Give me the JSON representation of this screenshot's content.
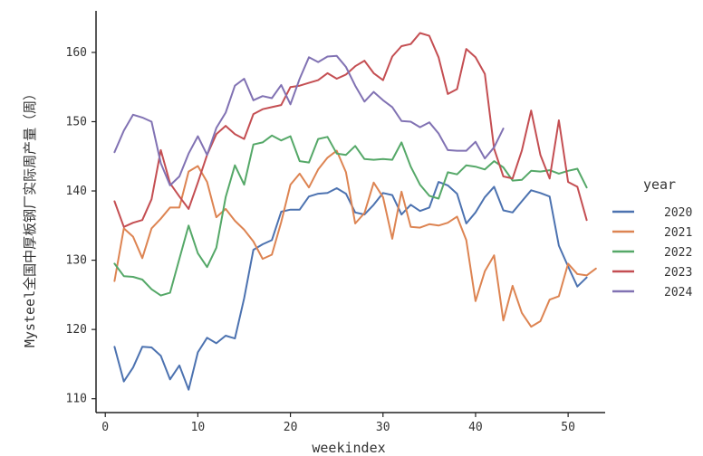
{
  "chart_data": {
    "type": "line",
    "xlabel": "weekindex",
    "ylabel": "Mysteel全国中厚板钢厂实际周产量（周）",
    "xlim": [
      -1,
      54
    ],
    "ylim": [
      108,
      166
    ],
    "xticks": [
      0,
      10,
      20,
      30,
      40,
      50
    ],
    "yticks": [
      110,
      120,
      130,
      140,
      150,
      160
    ],
    "grid": false,
    "legend": {
      "title": "year",
      "position": "right"
    },
    "series": [
      {
        "name": "2020",
        "color": "#4c72b0",
        "x": [
          1,
          2,
          3,
          4,
          5,
          6,
          7,
          8,
          9,
          10,
          11,
          12,
          13,
          14,
          15,
          16,
          17,
          18,
          19,
          20,
          21,
          22,
          23,
          24,
          25,
          26,
          27,
          28,
          29,
          30,
          31,
          32,
          33,
          34,
          35,
          36,
          37,
          38,
          39,
          40,
          41,
          42,
          43,
          44,
          45,
          46,
          47,
          48,
          49,
          50,
          51,
          52
        ],
        "y": [
          117.5,
          112.5,
          114.5,
          117.5,
          117.4,
          116.2,
          112.8,
          114.8,
          111.3,
          116.7,
          118.8,
          118,
          119.1,
          118.7,
          124.5,
          131.5,
          132.3,
          132.9,
          137,
          137.3,
          137.3,
          139.2,
          139.6,
          139.7,
          140.4,
          139.6,
          136.9,
          136.6,
          138,
          139.7,
          139.4,
          136.6,
          138,
          137.1,
          137.6,
          141.3,
          140.8,
          139.6,
          135.3,
          136.9,
          139.1,
          140.6,
          137.2,
          136.9,
          138.5,
          140.1,
          139.7,
          139.2,
          132.1,
          129.1,
          126.2,
          127.5
        ]
      },
      {
        "name": "2021",
        "color": "#dd8452",
        "x": [
          1,
          2,
          3,
          4,
          5,
          6,
          7,
          8,
          9,
          10,
          11,
          12,
          13,
          14,
          15,
          16,
          17,
          18,
          19,
          20,
          21,
          22,
          23,
          24,
          25,
          26,
          27,
          28,
          29,
          30,
          31,
          32,
          33,
          34,
          35,
          36,
          37,
          38,
          39,
          40,
          41,
          42,
          43,
          44,
          45,
          46,
          47,
          48,
          49,
          50,
          51,
          52,
          53
        ],
        "y": [
          127,
          134.6,
          133.4,
          130.3,
          134.6,
          136,
          137.6,
          137.6,
          142.8,
          143.6,
          141.3,
          136.2,
          137.4,
          135.7,
          134.4,
          132.7,
          130.2,
          130.8,
          135.5,
          140.9,
          142.5,
          140.5,
          143.1,
          144.8,
          145.8,
          142.7,
          135.3,
          136.8,
          141.2,
          139.1,
          133.1,
          139.9,
          134.8,
          134.7,
          135.2,
          135,
          135.4,
          136.3,
          132.9,
          124.1,
          128.4,
          130.7,
          121.3,
          126.3,
          122.4,
          120.4,
          121.2,
          124.3,
          124.8,
          129.5,
          128,
          127.8,
          128.8
        ]
      },
      {
        "name": "2022",
        "color": "#55a868",
        "x": [
          1,
          2,
          3,
          4,
          5,
          6,
          7,
          8,
          9,
          10,
          11,
          12,
          13,
          14,
          15,
          16,
          17,
          18,
          19,
          20,
          21,
          22,
          23,
          24,
          25,
          26,
          27,
          28,
          29,
          30,
          31,
          32,
          33,
          34,
          35,
          36,
          37,
          38,
          39,
          40,
          41,
          42,
          43,
          44,
          45,
          46,
          47,
          48,
          49,
          50,
          51,
          52
        ],
        "y": [
          129.5,
          127.7,
          127.6,
          127.2,
          125.8,
          124.9,
          125.3,
          130.2,
          135,
          131,
          129,
          131.8,
          139.1,
          143.7,
          140.9,
          146.7,
          147,
          148,
          147.3,
          147.9,
          144.3,
          144.1,
          147.5,
          147.8,
          145.4,
          145.2,
          146.5,
          144.6,
          144.5,
          144.6,
          144.5,
          147,
          143.5,
          140.9,
          139.3,
          138.9,
          142.7,
          142.4,
          143.7,
          143.5,
          143.1,
          144.3,
          143.4,
          141.5,
          141.6,
          142.9,
          142.8,
          143,
          142.5,
          142.9,
          143.2,
          140.5
        ]
      },
      {
        "name": "2023",
        "color": "#c44e52",
        "x": [
          1,
          2,
          3,
          4,
          5,
          6,
          7,
          8,
          9,
          10,
          11,
          12,
          13,
          14,
          15,
          16,
          17,
          18,
          19,
          20,
          21,
          22,
          23,
          24,
          25,
          26,
          27,
          28,
          29,
          30,
          31,
          32,
          33,
          34,
          35,
          36,
          37,
          38,
          39,
          40,
          41,
          42,
          43,
          44,
          45,
          46,
          47,
          48,
          49,
          50,
          51,
          52
        ],
        "y": [
          138.5,
          134.8,
          135.4,
          135.8,
          138.8,
          145.9,
          141.1,
          139.2,
          137.4,
          141.2,
          145.2,
          148.2,
          149.4,
          148.2,
          147.5,
          151.1,
          151.8,
          152.1,
          152.4,
          155,
          155.2,
          155.6,
          156,
          157,
          156.2,
          156.8,
          158,
          158.8,
          157,
          156,
          159.4,
          160.9,
          161.2,
          162.8,
          162.4,
          159.3,
          154,
          154.7,
          160.5,
          159.3,
          156.9,
          146.1,
          142.1,
          141.8,
          145.8,
          151.6,
          145.2,
          141.8,
          150.2,
          141.3,
          140.6,
          135.8
        ]
      },
      {
        "name": "2024",
        "color": "#8172b3",
        "x": [
          1,
          2,
          3,
          4,
          5,
          6,
          7,
          8,
          9,
          10,
          11,
          12,
          13,
          14,
          15,
          16,
          17,
          18,
          19,
          20,
          21,
          22,
          23,
          24,
          25,
          26,
          27,
          28,
          29,
          30,
          31,
          32,
          33,
          34,
          35,
          36,
          37,
          38,
          39,
          40,
          41,
          42,
          43
        ],
        "y": [
          145.6,
          148.7,
          151,
          150.6,
          150,
          144,
          140.8,
          142.1,
          145.4,
          147.9,
          145.2,
          149.1,
          151.3,
          155.2,
          156.2,
          153.1,
          153.7,
          153.4,
          155.3,
          152.5,
          156.2,
          159.3,
          158.6,
          159.4,
          159.5,
          157.9,
          155.2,
          152.9,
          154.3,
          153.1,
          152.1,
          150.1,
          150,
          149.2,
          149.9,
          148.3,
          145.9,
          145.8,
          145.8,
          147.1,
          144.7,
          146.3,
          149
        ]
      }
    ]
  }
}
